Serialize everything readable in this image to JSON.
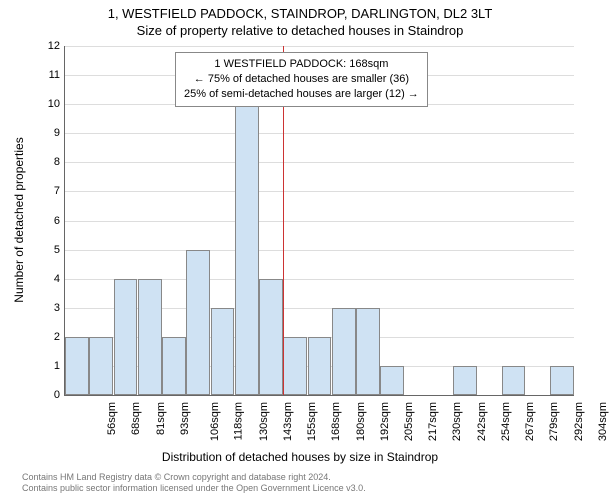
{
  "title_main": "1, WESTFIELD PADDOCK, STAINDROP, DARLINGTON, DL2 3LT",
  "title_sub": "Size of property relative to detached houses in Staindrop",
  "y_label": "Number of detached properties",
  "x_label": "Distribution of detached houses by size in Staindrop",
  "chart": {
    "type": "bar",
    "ylim": [
      0,
      12
    ],
    "ytick_step": 1,
    "bar_fill": "#cfe2f3",
    "bar_border": "#888888",
    "grid_color": "#dddddd",
    "background": "#ffffff",
    "vline_color": "#cc3333",
    "vline_index": 9,
    "categories": [
      "56sqm",
      "68sqm",
      "81sqm",
      "93sqm",
      "106sqm",
      "118sqm",
      "130sqm",
      "143sqm",
      "155sqm",
      "168sqm",
      "180sqm",
      "192sqm",
      "205sqm",
      "217sqm",
      "230sqm",
      "242sqm",
      "254sqm",
      "267sqm",
      "279sqm",
      "292sqm",
      "304sqm"
    ],
    "values": [
      2,
      2,
      4,
      4,
      2,
      5,
      3,
      10,
      4,
      2,
      2,
      3,
      3,
      1,
      0,
      0,
      1,
      0,
      1,
      0,
      1
    ]
  },
  "annotation": {
    "line1": "1 WESTFIELD PADDOCK: 168sqm",
    "line2": "← 75% of detached houses are smaller (36)",
    "line3": "25% of semi-detached houses are larger (12) →"
  },
  "footer": {
    "line1": "Contains HM Land Registry data © Crown copyright and database right 2024.",
    "line2": "Contains public sector information licensed under the Open Government Licence v3.0."
  }
}
